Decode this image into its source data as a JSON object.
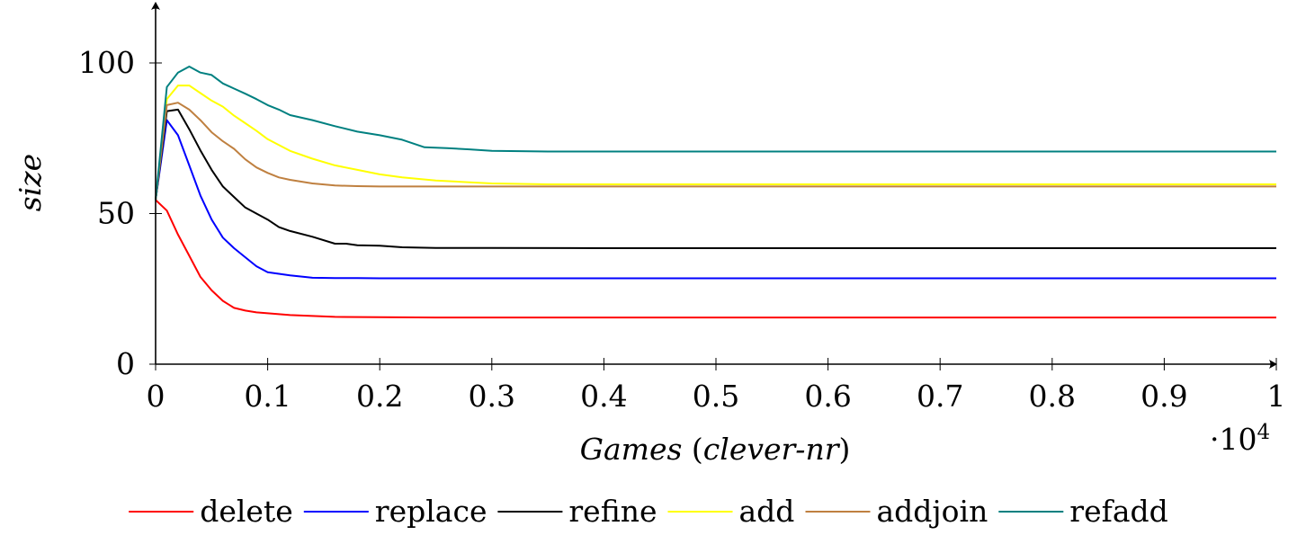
{
  "chart_data": {
    "type": "line",
    "xlabel_prefix": "Games",
    "xlabel_paren_open": "(",
    "xlabel_inner": "clever-nr",
    "xlabel_paren_close": ")",
    "ylabel": "size",
    "x_multiplier_dot": "·",
    "x_multiplier_base": "10",
    "x_multiplier_exp": "4",
    "xlim": [
      0,
      1
    ],
    "ylim": [
      0,
      100
    ],
    "x_ticks": [
      "0",
      "0.1",
      "0.2",
      "0.3",
      "0.4",
      "0.5",
      "0.6",
      "0.7",
      "0.8",
      "0.9",
      "1"
    ],
    "y_ticks": [
      "0",
      "50",
      "100"
    ],
    "grid": false,
    "legend_position": "bottom",
    "series": [
      {
        "name": "delete",
        "color": "#ff0000",
        "x": [
          0,
          0.01,
          0.02,
          0.03,
          0.04,
          0.05,
          0.06,
          0.07,
          0.08,
          0.09,
          0.1,
          0.12,
          0.14,
          0.16,
          0.2,
          0.25,
          0.3,
          0.4,
          0.5,
          0.6,
          0.7,
          0.8,
          0.9,
          1.0
        ],
        "y": [
          54.5,
          51,
          43,
          36,
          29,
          24.5,
          21,
          18.7,
          17.8,
          17.2,
          16.9,
          16.3,
          16.0,
          15.7,
          15.6,
          15.5,
          15.5,
          15.5,
          15.5,
          15.5,
          15.5,
          15.5,
          15.5,
          15.5
        ]
      },
      {
        "name": "replace",
        "color": "#0000ff",
        "x": [
          0,
          0.01,
          0.02,
          0.03,
          0.04,
          0.05,
          0.06,
          0.07,
          0.08,
          0.09,
          0.1,
          0.12,
          0.14,
          0.16,
          0.18,
          0.2,
          0.3,
          0.4,
          0.5,
          0.6,
          0.7,
          0.8,
          0.9,
          1.0
        ],
        "y": [
          54.5,
          81,
          76,
          66,
          56,
          48,
          42,
          38.5,
          35.5,
          32.5,
          30.5,
          29.5,
          28.7,
          28.6,
          28.6,
          28.5,
          28.5,
          28.5,
          28.5,
          28.5,
          28.5,
          28.5,
          28.5,
          28.5
        ]
      },
      {
        "name": "refine",
        "color": "#000000",
        "x": [
          0,
          0.01,
          0.02,
          0.03,
          0.04,
          0.05,
          0.06,
          0.07,
          0.08,
          0.09,
          0.1,
          0.11,
          0.12,
          0.14,
          0.16,
          0.17,
          0.18,
          0.2,
          0.22,
          0.25,
          0.3,
          0.4,
          0.5,
          0.6,
          0.7,
          0.8,
          0.9,
          1.0
        ],
        "y": [
          54.5,
          84,
          84.5,
          78,
          71,
          64.5,
          59,
          55.5,
          52,
          50,
          48,
          45.5,
          44.2,
          42.3,
          40.0,
          40.0,
          39.5,
          39.3,
          38.8,
          38.6,
          38.6,
          38.5,
          38.5,
          38.5,
          38.5,
          38.5,
          38.5,
          38.5
        ]
      },
      {
        "name": "add",
        "color": "#ffff00",
        "x": [
          0,
          0.01,
          0.02,
          0.03,
          0.04,
          0.05,
          0.06,
          0.07,
          0.08,
          0.09,
          0.1,
          0.12,
          0.14,
          0.16,
          0.18,
          0.2,
          0.22,
          0.25,
          0.28,
          0.3,
          0.35,
          0.4,
          0.5,
          0.6,
          0.7,
          0.8,
          0.9,
          1.0
        ],
        "y": [
          54.5,
          88,
          92.5,
          92.5,
          90,
          87.5,
          85.5,
          82.5,
          80,
          77.5,
          74.7,
          70.8,
          68.2,
          66,
          64.5,
          63,
          62,
          61,
          60.4,
          60,
          59.7,
          59.7,
          59.7,
          59.7,
          59.7,
          59.7,
          59.7,
          59.7
        ]
      },
      {
        "name": "addjoin",
        "color": "#bf8040",
        "x": [
          0,
          0.01,
          0.02,
          0.03,
          0.04,
          0.05,
          0.06,
          0.07,
          0.08,
          0.09,
          0.1,
          0.11,
          0.12,
          0.14,
          0.16,
          0.18,
          0.2,
          0.25,
          0.3,
          0.4,
          0.5,
          0.6,
          0.7,
          0.8,
          0.9,
          1.0
        ],
        "y": [
          54.5,
          86,
          86.8,
          84.5,
          81,
          77,
          74,
          71.5,
          68,
          65.3,
          63.5,
          62,
          61.2,
          60,
          59.3,
          59.1,
          59.0,
          59.0,
          59.0,
          59.0,
          59.0,
          59.0,
          59.0,
          59.0,
          59.0,
          59.0
        ]
      },
      {
        "name": "refadd",
        "color": "#008080",
        "x": [
          0,
          0.01,
          0.02,
          0.03,
          0.04,
          0.05,
          0.06,
          0.07,
          0.08,
          0.09,
          0.1,
          0.11,
          0.12,
          0.14,
          0.16,
          0.18,
          0.2,
          0.22,
          0.24,
          0.26,
          0.28,
          0.3,
          0.35,
          0.4,
          0.5,
          0.6,
          0.7,
          0.8,
          0.9,
          1.0
        ],
        "y": [
          54.5,
          92,
          96.8,
          98.8,
          96.8,
          96,
          93.2,
          91.5,
          89.8,
          88,
          86,
          84.5,
          82.7,
          81,
          79,
          77.2,
          76,
          74.5,
          72,
          71.7,
          71.3,
          70.8,
          70.6,
          70.6,
          70.6,
          70.6,
          70.6,
          70.6,
          70.6,
          70.6
        ]
      }
    ]
  }
}
